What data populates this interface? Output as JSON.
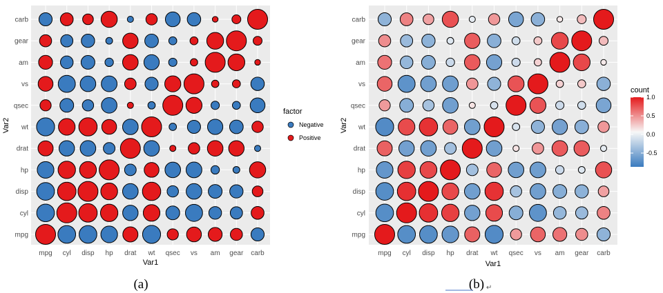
{
  "chart_data": [
    {
      "type": "scatter",
      "subtype": "correlation-bubble",
      "caption": "(a)",
      "xlabel": "Var1",
      "ylabel": "Var2",
      "x_categories": [
        "mpg",
        "cyl",
        "disp",
        "hp",
        "drat",
        "wt",
        "qsec",
        "vs",
        "am",
        "gear",
        "carb"
      ],
      "y_categories": [
        "mpg",
        "cyl",
        "disp",
        "hp",
        "drat",
        "wt",
        "qsec",
        "vs",
        "am",
        "gear",
        "carb"
      ],
      "size_by": "absolute correlation",
      "color_by": "factor",
      "grid": true,
      "legend": {
        "title": "factor",
        "position": "right",
        "entries": [
          {
            "label": "Negative",
            "color": "#3a7bbf"
          },
          {
            "label": "Positive",
            "color": "#e41a1c"
          }
        ]
      },
      "values": [
        [
          1.0,
          -0.85,
          -0.85,
          -0.78,
          0.68,
          -0.87,
          0.42,
          0.66,
          0.6,
          0.48,
          -0.55
        ],
        [
          -0.85,
          1.0,
          0.9,
          0.83,
          -0.7,
          0.78,
          -0.59,
          -0.81,
          -0.52,
          -0.49,
          0.53
        ],
        [
          -0.85,
          0.9,
          1.0,
          0.79,
          -0.71,
          0.89,
          -0.43,
          -0.71,
          -0.59,
          -0.56,
          0.39
        ],
        [
          -0.78,
          0.83,
          0.79,
          1.0,
          -0.45,
          0.66,
          -0.71,
          -0.72,
          -0.24,
          -0.13,
          0.75
        ],
        [
          0.68,
          -0.7,
          -0.71,
          -0.45,
          1.0,
          -0.71,
          0.09,
          0.44,
          0.71,
          0.7,
          -0.09
        ],
        [
          -0.87,
          0.78,
          0.89,
          0.66,
          -0.71,
          1.0,
          -0.17,
          -0.55,
          -0.69,
          -0.58,
          0.43
        ],
        [
          0.42,
          -0.59,
          -0.43,
          -0.71,
          0.09,
          -0.17,
          1.0,
          0.74,
          -0.23,
          -0.21,
          -0.66
        ],
        [
          0.66,
          -0.81,
          -0.71,
          -0.72,
          0.44,
          -0.55,
          0.74,
          1.0,
          0.17,
          0.21,
          -0.57
        ],
        [
          0.6,
          -0.52,
          -0.59,
          -0.24,
          0.71,
          -0.69,
          -0.23,
          0.17,
          1.0,
          0.79,
          0.06
        ],
        [
          0.48,
          -0.49,
          -0.56,
          -0.13,
          0.7,
          -0.58,
          -0.21,
          0.21,
          0.79,
          1.0,
          0.27
        ],
        [
          -0.55,
          0.53,
          0.39,
          0.75,
          -0.09,
          0.43,
          -0.66,
          -0.57,
          0.06,
          0.27,
          1.0
        ]
      ]
    },
    {
      "type": "scatter",
      "subtype": "correlation-bubble",
      "caption": "(b)",
      "xlabel": "Var1",
      "ylabel": "Var2",
      "x_categories": [
        "mpg",
        "cyl",
        "disp",
        "hp",
        "drat",
        "wt",
        "qsec",
        "vs",
        "am",
        "gear",
        "carb"
      ],
      "y_categories": [
        "mpg",
        "cyl",
        "disp",
        "hp",
        "drat",
        "wt",
        "qsec",
        "vs",
        "am",
        "gear",
        "carb"
      ],
      "size_by": "absolute correlation",
      "color_by": "count",
      "grid": true,
      "legend": {
        "title": "count",
        "position": "right",
        "type": "gradient",
        "range": [
          -0.87,
          1.0
        ],
        "ticks": [
          {
            "value": 1.0,
            "label": "1.0"
          },
          {
            "value": 0.5,
            "label": "0.5"
          },
          {
            "value": 0.0,
            "label": "0.0"
          },
          {
            "value": -0.5,
            "label": "-0.5"
          }
        ],
        "colors": {
          "low": "#3a7bbf",
          "mid": "#f7f7f7",
          "high": "#e41a1c"
        }
      },
      "values": [
        [
          1.0,
          -0.85,
          -0.85,
          -0.78,
          0.68,
          -0.87,
          0.42,
          0.66,
          0.6,
          0.48,
          -0.55
        ],
        [
          -0.85,
          1.0,
          0.9,
          0.83,
          -0.7,
          0.78,
          -0.59,
          -0.81,
          -0.52,
          -0.49,
          0.53
        ],
        [
          -0.85,
          0.9,
          1.0,
          0.79,
          -0.71,
          0.89,
          -0.43,
          -0.71,
          -0.59,
          -0.56,
          0.39
        ],
        [
          -0.78,
          0.83,
          0.79,
          1.0,
          -0.45,
          0.66,
          -0.71,
          -0.72,
          -0.24,
          -0.13,
          0.75
        ],
        [
          0.68,
          -0.7,
          -0.71,
          -0.45,
          1.0,
          -0.71,
          0.09,
          0.44,
          0.71,
          0.7,
          -0.09
        ],
        [
          -0.87,
          0.78,
          0.89,
          0.66,
          -0.71,
          1.0,
          -0.17,
          -0.55,
          -0.69,
          -0.58,
          0.43
        ],
        [
          0.42,
          -0.59,
          -0.43,
          -0.71,
          0.09,
          -0.17,
          1.0,
          0.74,
          -0.23,
          -0.21,
          -0.66
        ],
        [
          0.66,
          -0.81,
          -0.71,
          -0.72,
          0.44,
          -0.55,
          0.74,
          1.0,
          0.17,
          0.21,
          -0.57
        ],
        [
          0.6,
          -0.52,
          -0.59,
          -0.24,
          0.71,
          -0.69,
          -0.23,
          0.17,
          1.0,
          0.79,
          0.06
        ],
        [
          0.48,
          -0.49,
          -0.56,
          -0.13,
          0.7,
          -0.58,
          -0.21,
          0.21,
          0.79,
          1.0,
          0.27
        ],
        [
          -0.55,
          0.53,
          0.39,
          0.75,
          -0.09,
          0.43,
          -0.66,
          -0.57,
          0.06,
          0.27,
          1.0
        ]
      ]
    }
  ],
  "edit_mark": "↵"
}
